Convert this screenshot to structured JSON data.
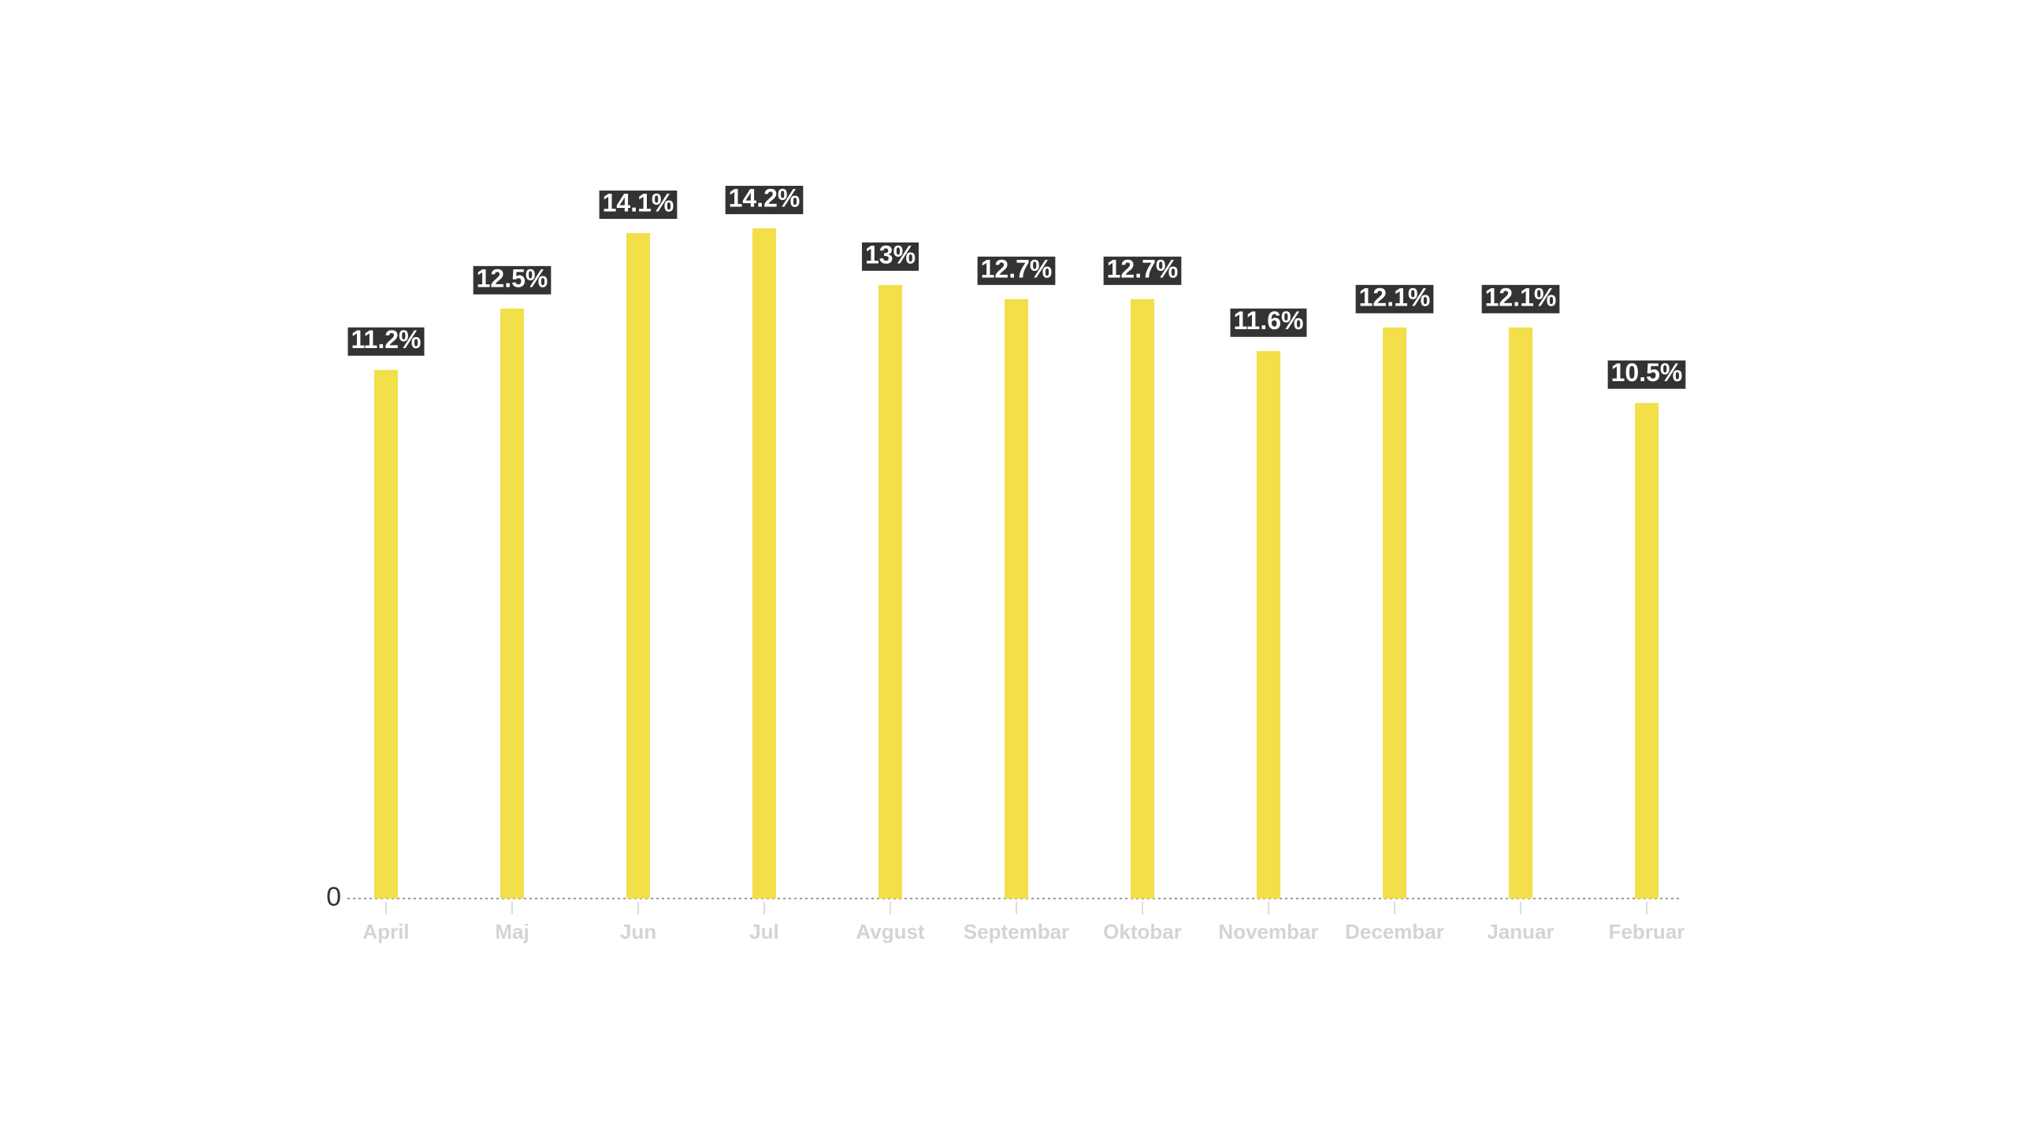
{
  "chart_data": {
    "type": "bar",
    "categories": [
      "April",
      "Maj",
      "Jun",
      "Jul",
      "Avgust",
      "Septembar",
      "Oktobar",
      "Novembar",
      "Decembar",
      "Januar",
      "Februar"
    ],
    "values": [
      11.2,
      12.5,
      14.1,
      14.2,
      13,
      12.7,
      12.7,
      11.6,
      12.1,
      12.1,
      10.5
    ],
    "value_labels": [
      "11.2%",
      "12.5%",
      "14.1%",
      "14.2%",
      "13%",
      "12.7%",
      "12.7%",
      "11.6%",
      "12.1%",
      "12.1%",
      "10.5%"
    ],
    "color": "#f2df4a",
    "ylim": [
      0,
      15
    ],
    "yticks": [
      0
    ],
    "grid": false
  }
}
